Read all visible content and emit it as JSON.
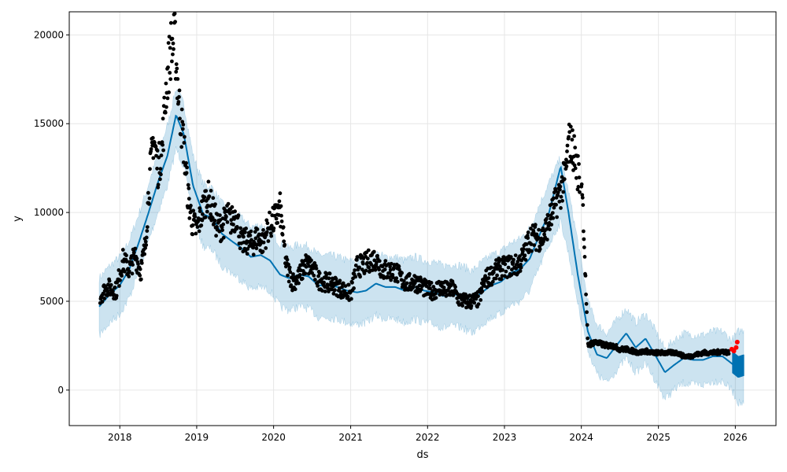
{
  "chart_data": {
    "type": "line",
    "title": "",
    "xlabel": "ds",
    "ylabel": "y",
    "xlim": [
      "2017-05-06",
      "2026-07-13"
    ],
    "ylim": [
      -2000,
      21300
    ],
    "x_ticks": [
      "2018",
      "2019",
      "2020",
      "2021",
      "2022",
      "2023",
      "2024",
      "2025",
      "2026"
    ],
    "y_ticks": [
      0,
      5000,
      10000,
      15000,
      20000
    ],
    "grid": true,
    "legend": "none",
    "colors": {
      "forecast": "#0072B2",
      "interval": "#0072B2",
      "observed": "#000000",
      "recent": "#ff0000"
    },
    "series": [
      {
        "role": "forecast-band",
        "x": [
          "2017-09-25",
          "2017-11-15",
          "2018-01-01",
          "2018-02-15",
          "2018-04-01",
          "2018-05-15",
          "2018-07-01",
          "2018-08-15",
          "2018-09-25",
          "2018-11-01",
          "2018-12-15",
          "2019-02-01",
          "2019-03-15",
          "2019-05-01",
          "2019-06-15",
          "2019-08-01",
          "2019-09-15",
          "2019-11-01",
          "2019-12-15",
          "2020-02-01",
          "2020-03-15",
          "2020-05-01",
          "2020-06-15",
          "2020-08-01",
          "2020-09-15",
          "2020-11-01",
          "2020-12-15",
          "2021-02-01",
          "2021-03-15",
          "2021-05-01",
          "2021-06-15",
          "2021-08-01",
          "2021-09-15",
          "2021-11-01",
          "2021-12-15",
          "2022-02-01",
          "2022-03-15",
          "2022-05-01",
          "2022-06-15",
          "2022-08-01",
          "2022-09-15",
          "2022-11-01",
          "2022-12-15",
          "2023-02-01",
          "2023-03-15",
          "2023-05-01",
          "2023-06-15",
          "2023-08-01",
          "2023-09-25",
          "2023-11-01",
          "2023-12-15",
          "2024-02-01",
          "2024-03-15",
          "2024-05-01",
          "2024-06-15",
          "2024-08-01",
          "2024-09-15",
          "2024-11-01",
          "2024-12-15",
          "2025-02-01",
          "2025-03-15",
          "2025-05-01",
          "2025-06-15",
          "2025-08-01",
          "2025-09-15",
          "2025-11-01",
          "2025-12-15",
          "2026-01-15",
          "2026-02-10"
        ],
        "lower": [
          3100,
          3800,
          4300,
          5200,
          6700,
          8300,
          10000,
          11500,
          13600,
          12600,
          9700,
          8100,
          7900,
          7000,
          6600,
          6200,
          5700,
          5800,
          5600,
          4700,
          4500,
          4700,
          4600,
          4100,
          4100,
          4000,
          3800,
          3700,
          3800,
          4200,
          4000,
          4000,
          3800,
          4000,
          3800,
          3700,
          3500,
          3600,
          3500,
          3200,
          3700,
          4100,
          4300,
          4800,
          5000,
          5600,
          6900,
          8200,
          9500,
          7700,
          4900,
          2300,
          900,
          400,
          1100,
          1800,
          1000,
          1500,
          600,
          -500,
          0,
          400,
          300,
          300,
          500,
          500,
          0,
          -700,
          -800
        ],
        "upper": [
          6300,
          7000,
          7500,
          8400,
          9900,
          11500,
          13300,
          14900,
          17000,
          16100,
          13200,
          11600,
          11400,
          10500,
          10100,
          9700,
          9200,
          9300,
          9000,
          8200,
          8000,
          8200,
          8100,
          7600,
          7600,
          7500,
          7300,
          7200,
          7300,
          7700,
          7500,
          7500,
          7300,
          7500,
          7300,
          7200,
          7000,
          7100,
          7000,
          6700,
          7200,
          7600,
          7800,
          8300,
          8500,
          9100,
          10400,
          11700,
          13100,
          11200,
          8400,
          5000,
          3700,
          3200,
          3900,
          4600,
          3800,
          4300,
          3400,
          2300,
          2800,
          3200,
          3100,
          3100,
          3300,
          3300,
          2800,
          3300,
          3400
        ]
      },
      {
        "role": "forecast-line",
        "x": [
          "2017-09-25",
          "2017-11-15",
          "2018-01-01",
          "2018-02-15",
          "2018-04-01",
          "2018-05-15",
          "2018-07-01",
          "2018-08-15",
          "2018-09-25",
          "2018-11-01",
          "2018-12-15",
          "2019-02-01",
          "2019-03-15",
          "2019-05-01",
          "2019-06-15",
          "2019-08-01",
          "2019-09-15",
          "2019-11-01",
          "2019-12-15",
          "2020-02-01",
          "2020-03-15",
          "2020-05-01",
          "2020-06-15",
          "2020-08-01",
          "2020-09-15",
          "2020-11-01",
          "2020-12-15",
          "2021-02-01",
          "2021-03-15",
          "2021-05-01",
          "2021-06-15",
          "2021-08-01",
          "2021-09-15",
          "2021-11-01",
          "2021-12-15",
          "2022-02-01",
          "2022-03-15",
          "2022-05-01",
          "2022-06-15",
          "2022-08-01",
          "2022-09-15",
          "2022-11-01",
          "2022-12-15",
          "2023-02-01",
          "2023-03-15",
          "2023-05-01",
          "2023-06-15",
          "2023-08-01",
          "2023-09-25",
          "2023-11-01",
          "2023-12-15",
          "2024-02-01",
          "2024-03-15",
          "2024-05-01",
          "2024-06-15",
          "2024-08-01",
          "2024-09-15",
          "2024-11-01",
          "2024-12-15",
          "2025-02-01",
          "2025-03-15",
          "2025-05-01",
          "2025-06-15",
          "2025-08-01",
          "2025-09-15",
          "2025-11-01",
          "2025-12-15",
          "2026-01-15",
          "2026-02-10"
        ],
        "y": [
          4700,
          5400,
          5900,
          6800,
          8300,
          9900,
          11700,
          13200,
          15500,
          14400,
          11500,
          9900,
          9700,
          8800,
          8400,
          8000,
          7500,
          7600,
          7300,
          6500,
          6300,
          6500,
          6400,
          5900,
          5900,
          5800,
          5600,
          5500,
          5600,
          6000,
          5800,
          5800,
          5600,
          5800,
          5600,
          5500,
          5300,
          5400,
          5300,
          5000,
          5500,
          5900,
          6100,
          6600,
          6800,
          7400,
          8700,
          10000,
          12600,
          10000,
          6500,
          3300,
          2000,
          1800,
          2500,
          3200,
          2400,
          2900,
          2000,
          1000,
          1400,
          1800,
          1700,
          1700,
          1900,
          1900,
          1500,
          1200,
          1300
        ]
      },
      {
        "role": "observed",
        "x": [
          "2017-09-30",
          "2017-11-01",
          "2017-12-15",
          "2018-01-15",
          "2018-02-15",
          "2018-03-15",
          "2018-04-10",
          "2018-05-01",
          "2018-05-20",
          "2018-06-10",
          "2018-07-01",
          "2018-07-20",
          "2018-08-10",
          "2018-09-01",
          "2018-09-20",
          "2018-10-10",
          "2018-11-01",
          "2018-11-20",
          "2018-12-10",
          "2019-01-01",
          "2019-01-25",
          "2019-02-20",
          "2019-03-15",
          "2019-04-10",
          "2019-05-01",
          "2019-05-25",
          "2019-06-15",
          "2019-07-10",
          "2019-08-01",
          "2019-08-25",
          "2019-09-20",
          "2019-10-15",
          "2019-11-10",
          "2019-12-05",
          "2020-01-01",
          "2020-02-01",
          "2020-03-01",
          "2020-04-01",
          "2020-05-01",
          "2020-06-01",
          "2020-07-01",
          "2020-08-01",
          "2020-09-01",
          "2020-10-01",
          "2020-11-01",
          "2020-12-01",
          "2021-01-01",
          "2021-02-01",
          "2021-03-01",
          "2021-04-01",
          "2021-05-01",
          "2021-06-01",
          "2021-07-01",
          "2021-08-01",
          "2021-09-01",
          "2021-10-01",
          "2021-11-01",
          "2021-12-01",
          "2022-01-01",
          "2022-02-01",
          "2022-03-01",
          "2022-04-01",
          "2022-05-01",
          "2022-06-01",
          "2022-07-01",
          "2022-08-01",
          "2022-09-01",
          "2022-10-01",
          "2022-11-01",
          "2022-12-01",
          "2023-01-01",
          "2023-02-01",
          "2023-03-01",
          "2023-04-01",
          "2023-05-01",
          "2023-06-01",
          "2023-07-01",
          "2023-08-01",
          "2023-09-01",
          "2023-09-25",
          "2023-10-15",
          "2023-11-05",
          "2023-11-25",
          "2023-12-20",
          "2024-01-05",
          "2024-02-01",
          "2024-03-01",
          "2024-04-01",
          "2024-05-01",
          "2024-06-01",
          "2024-07-01",
          "2024-08-01",
          "2024-09-01",
          "2024-10-01",
          "2024-11-01",
          "2024-12-01",
          "2025-01-01",
          "2025-02-01",
          "2025-03-01",
          "2025-04-01",
          "2025-05-01",
          "2025-06-01",
          "2025-07-01",
          "2025-08-01",
          "2025-09-01",
          "2025-10-01",
          "2025-11-01",
          "2025-12-01"
        ],
        "y": [
          5300,
          5800,
          5600,
          7300,
          6800,
          7600,
          6700,
          8000,
          11500,
          14300,
          12500,
          13500,
          17200,
          19300,
          19600,
          16000,
          13800,
          11000,
          9500,
          9000,
          10000,
          11000,
          10200,
          9200,
          9200,
          9800,
          9500,
          9900,
          8200,
          8400,
          8200,
          8600,
          8300,
          9100,
          9500,
          10200,
          7000,
          6100,
          6400,
          7100,
          6900,
          6200,
          6100,
          6000,
          5800,
          5600,
          5400,
          7000,
          7000,
          7300,
          7400,
          6800,
          6700,
          6700,
          6200,
          6000,
          6100,
          5900,
          5600,
          5600,
          5800,
          5600,
          5700,
          5100,
          5000,
          5000,
          5100,
          6200,
          6500,
          6800,
          6900,
          7000,
          7000,
          7500,
          8600,
          8600,
          8600,
          9500,
          10500,
          11200,
          12000,
          14000,
          13500,
          12000,
          11500,
          2500,
          2700,
          2600,
          2500,
          2500,
          2300,
          2300,
          2200,
          2100,
          2200,
          2100,
          2100,
          2100,
          2100,
          2100,
          1900,
          1900,
          2000,
          2100,
          2100,
          2100,
          2200,
          2100
        ]
      },
      {
        "role": "recent",
        "x": [
          "2025-12-15",
          "2025-12-25",
          "2026-01-05",
          "2026-01-10"
        ],
        "y": [
          2300,
          2200,
          2400,
          2700
        ]
      }
    ]
  }
}
